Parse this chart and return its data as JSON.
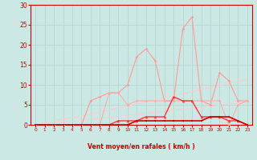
{
  "x": [
    0,
    1,
    2,
    3,
    4,
    5,
    6,
    7,
    8,
    9,
    10,
    11,
    12,
    13,
    14,
    15,
    16,
    17,
    18,
    19,
    20,
    21,
    22,
    23
  ],
  "series_pink_rafales": [
    0,
    0,
    0,
    0,
    0,
    0,
    6,
    7,
    8,
    8,
    10,
    17,
    19,
    16,
    6,
    6,
    24,
    27,
    6,
    5,
    13,
    11,
    6,
    6
  ],
  "series_pink_low": [
    0,
    0,
    0,
    0,
    0,
    0,
    0,
    0,
    8,
    8,
    5,
    6,
    6,
    6,
    6,
    6,
    6,
    6,
    6,
    6,
    6,
    0,
    5,
    6
  ],
  "series_red_tri": [
    0,
    0,
    0,
    0,
    0,
    0,
    0,
    0,
    0,
    1,
    1,
    1,
    2,
    2,
    2,
    7,
    6,
    6,
    2,
    2,
    2,
    1,
    1,
    0
  ],
  "series_dark_red": [
    0,
    0,
    0,
    0,
    0,
    0,
    0,
    0,
    0,
    0,
    0,
    1,
    1,
    1,
    1,
    1,
    1,
    1,
    1,
    2,
    2,
    2,
    1,
    0
  ],
  "series_trend1": [
    0,
    0.5,
    1.0,
    1.4,
    1.8,
    2.2,
    2.7,
    3.2,
    3.7,
    4.2,
    4.7,
    5.2,
    5.8,
    6.3,
    6.8,
    7.3,
    7.8,
    8.3,
    8.8,
    9.3,
    9.8,
    10.3,
    10.8,
    11.3
  ],
  "series_trend2": [
    0,
    0.25,
    0.5,
    0.7,
    0.9,
    1.1,
    1.35,
    1.6,
    1.85,
    2.1,
    2.35,
    2.6,
    2.9,
    3.15,
    3.4,
    3.65,
    3.9,
    4.15,
    4.4,
    4.65,
    4.9,
    5.15,
    5.4,
    5.65
  ],
  "xlabel": "Vent moyen/en rafales ( km/h )",
  "ylim": [
    0,
    30
  ],
  "yticks": [
    0,
    5,
    10,
    15,
    20,
    25,
    30
  ],
  "xlim": [
    -0.5,
    23.5
  ],
  "bg_color": "#cce8e4",
  "grid_color": "#b0d4cc",
  "color_pink_high": "#ff9999",
  "color_pink_low": "#ffaaaa",
  "color_red_tri": "#ff3333",
  "color_dark_red": "#cc0000",
  "color_trend": "#ffcccc",
  "wind_arrows": [
    "↙",
    "↙",
    "↙",
    "↙",
    "↓",
    "↙",
    "←",
    "←",
    "→",
    "→",
    "→",
    "→",
    "→",
    "↗",
    "↙",
    "→",
    "↗",
    "→",
    "↑",
    "↗",
    "↗",
    "→",
    "↘",
    "↘"
  ],
  "axis_label_color": "#cc0000",
  "tick_label_color": "#cc0000"
}
